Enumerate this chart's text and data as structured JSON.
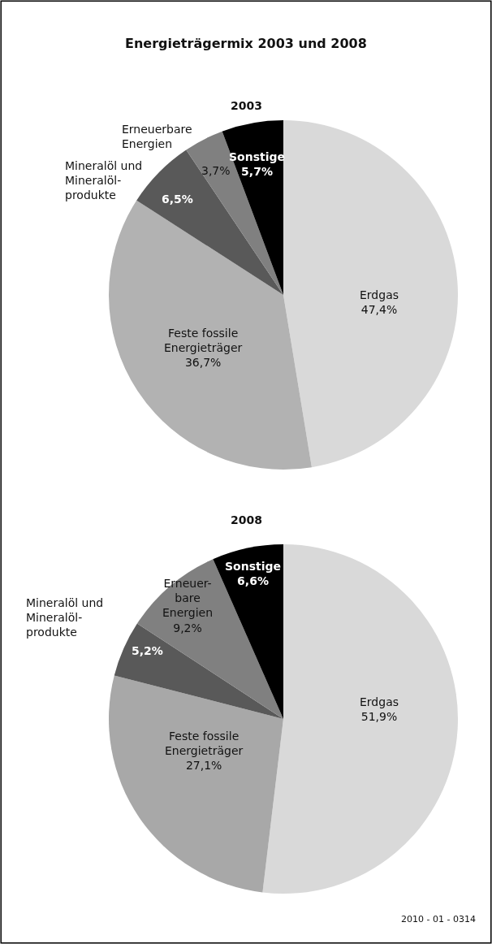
{
  "chart_data": [
    {
      "type": "pie",
      "title": "Energieträgermix 2003 und 2008",
      "subtitle": "2003",
      "categories": [
        "Erdgas",
        "Feste fossile\nEnergieträger",
        "Mineralöl und\nMineralöl-\nprodukte",
        "Erneuerbare\nEnergien",
        "Sonstige"
      ],
      "values": [
        47.4,
        36.7,
        6.5,
        3.7,
        5.7
      ],
      "value_labels": [
        "47,4%",
        "36,7%",
        "6,5%",
        "3,7%",
        "5,7%"
      ],
      "colors": [
        "#d9d9d9",
        "#b2b2b2",
        "#595959",
        "#808080",
        "#000000"
      ]
    },
    {
      "type": "pie",
      "title": "2008",
      "categories": [
        "Erdgas",
        "Feste fossile\nEnergieträger",
        "Mineralöl und\nMineralöl-\nprodukte",
        "Erneuer-\nbare\nEnergien",
        "Sonstige"
      ],
      "values": [
        51.9,
        27.1,
        5.2,
        9.2,
        6.6
      ],
      "value_labels": [
        "51,9%",
        "27,1%",
        "5,2%",
        "9,2%",
        "6,6%"
      ],
      "colors": [
        "#d9d9d9",
        "#a8a8a8",
        "#595959",
        "#808080",
        "#000000"
      ],
      "annotations": [
        "2010 - 01 - 0314"
      ]
    }
  ]
}
